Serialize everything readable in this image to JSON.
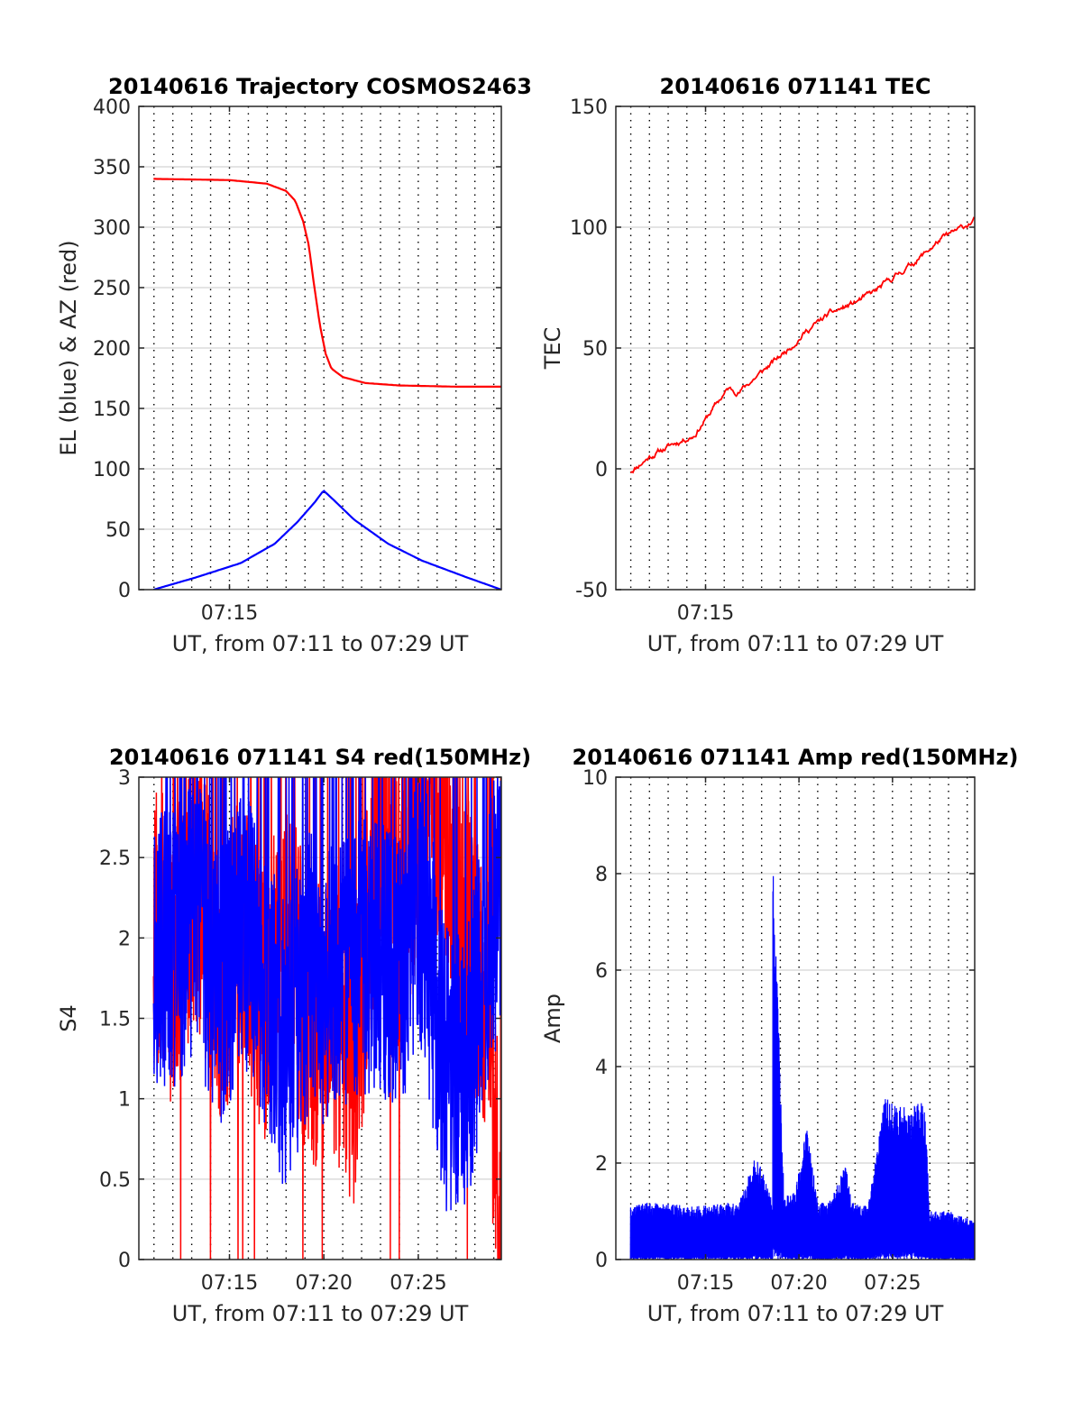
{
  "chart_data": [
    {
      "type": "line",
      "title": "20140616 Trajectory COSMOS2463",
      "xlabel": "UT, from 07:11 to 07:29 UT",
      "ylabel": "EL (blue) & AZ (red)",
      "xlim": [
        7.17,
        7.49
      ],
      "ylim": [
        0,
        400
      ],
      "yticks": [
        0,
        50,
        100,
        150,
        200,
        250,
        300,
        350,
        400
      ],
      "xticks": [
        {
          "value": 7.25,
          "label": "07:15"
        }
      ],
      "grid": true,
      "series": [
        {
          "color": "#ff0000",
          "x": [
            7.183,
            7.25,
            7.283,
            7.3,
            7.308,
            7.315,
            7.32,
            7.325,
            7.33,
            7.335,
            7.34,
            7.35,
            7.37,
            7.4,
            7.45,
            7.49
          ],
          "y": [
            340,
            339,
            336,
            330,
            322,
            305,
            285,
            250,
            218,
            195,
            183,
            176,
            171,
            169,
            168,
            168
          ]
        },
        {
          "color": "#0000ff",
          "x": [
            7.183,
            7.22,
            7.26,
            7.29,
            7.31,
            7.325,
            7.333,
            7.34,
            7.36,
            7.39,
            7.42,
            7.46,
            7.49
          ],
          "y": [
            0,
            10,
            22,
            38,
            56,
            72,
            82,
            76,
            58,
            38,
            24,
            10,
            0
          ]
        }
      ]
    },
    {
      "type": "line",
      "title": "20140616 071141 TEC",
      "xlabel": "UT, from 07:11 to 07:29 UT",
      "ylabel": "TEC",
      "xlim": [
        7.17,
        7.49
      ],
      "ylim": [
        -50,
        150
      ],
      "yticks": [
        -50,
        0,
        50,
        100,
        150
      ],
      "xticks": [
        {
          "value": 7.25,
          "label": "07:15"
        }
      ],
      "grid": true,
      "series": [
        {
          "color": "#ff0000",
          "x": [
            7.183,
            7.2,
            7.22,
            7.24,
            7.26,
            7.27,
            7.28,
            7.3,
            7.32,
            7.34,
            7.36,
            7.38,
            7.4,
            7.42,
            7.44,
            7.46,
            7.48,
            7.49
          ],
          "y": [
            -1,
            5,
            10,
            14,
            27,
            33,
            32,
            40,
            48,
            57,
            64,
            68,
            73,
            80,
            87,
            95,
            100,
            103
          ]
        }
      ]
    },
    {
      "type": "line",
      "title": "20140616 071141 S4 red(150MHz)",
      "xlabel": "UT, from 07:11 to 07:29 UT",
      "ylabel": "S4",
      "xlim": [
        7.17,
        7.49
      ],
      "ylim": [
        0,
        3
      ],
      "yticks": [
        0,
        0.5,
        1,
        1.5,
        2,
        2.5,
        3
      ],
      "yticklabels": [
        "0",
        "0.5",
        "1",
        "1.5",
        "2",
        "2.5",
        "3"
      ],
      "xticks": [
        {
          "value": 7.25,
          "label": "07:15"
        },
        {
          "value": 7.3333,
          "label": "07:20"
        },
        {
          "value": 7.4167,
          "label": "07:25"
        }
      ],
      "grid": true,
      "series": [
        {
          "color": "#ff0000",
          "x": [
            7.183,
            7.2,
            7.22,
            7.24,
            7.26,
            7.28,
            7.3,
            7.32,
            7.34,
            7.36,
            7.38,
            7.4,
            7.42,
            7.44,
            7.46,
            7.48,
            7.49
          ],
          "y": [
            2.2,
            1.8,
            2.4,
            1.7,
            2.0,
            1.6,
            2.2,
            1.4,
            1.5,
            1.2,
            2.6,
            2.2,
            2.9,
            2.8,
            2.0,
            1.5,
            0.0
          ]
        },
        {
          "color": "#0000ff",
          "x": [
            7.183,
            7.2,
            7.22,
            7.24,
            7.26,
            7.28,
            7.3,
            7.32,
            7.34,
            7.36,
            7.38,
            7.4,
            7.42,
            7.44,
            7.46,
            7.48,
            7.49
          ],
          "y": [
            2.0,
            1.9,
            2.2,
            1.6,
            2.1,
            1.7,
            1.3,
            1.8,
            1.7,
            1.9,
            1.9,
            1.8,
            2.2,
            1.2,
            1.2,
            2.0,
            2.3
          ]
        }
      ]
    },
    {
      "type": "line",
      "title": "20140616 071141 Amp red(150MHz)",
      "xlabel": "UT, from 07:11 to 07:29 UT",
      "ylabel": "Amp",
      "xlim": [
        7.17,
        7.49
      ],
      "ylim": [
        0,
        10
      ],
      "yticks": [
        0,
        2,
        4,
        6,
        8,
        10
      ],
      "xticks": [
        {
          "value": 7.25,
          "label": "07:15"
        },
        {
          "value": 7.3333,
          "label": "07:20"
        },
        {
          "value": 7.4167,
          "label": "07:25"
        }
      ],
      "grid": true,
      "series": [
        {
          "color": "#0000ff",
          "x": [
            7.183,
            7.2,
            7.24,
            7.28,
            7.295,
            7.31,
            7.31,
            7.32,
            7.33,
            7.34,
            7.35,
            7.36,
            7.375,
            7.38,
            7.395,
            7.41,
            7.43,
            7.445,
            7.45,
            7.47,
            7.49
          ],
          "y": [
            1.1,
            1.2,
            1.1,
            1.2,
            2.2,
            1.2,
            8.8,
            1.3,
            1.4,
            2.8,
            1.2,
            1.2,
            2.0,
            1.2,
            1.1,
            3.4,
            3.2,
            3.3,
            1.0,
            1.0,
            0.8
          ]
        }
      ]
    }
  ]
}
